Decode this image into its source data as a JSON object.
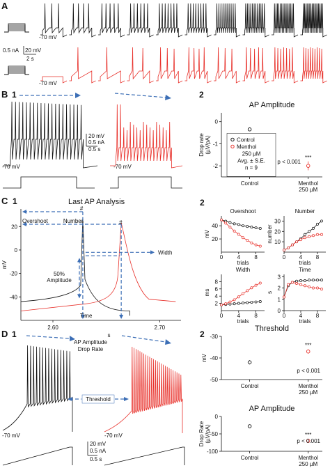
{
  "panels": {
    "A": "A",
    "B": "B",
    "C": "C",
    "D": "D",
    "B1": "1",
    "B2": "2",
    "C1": "1",
    "C2": "2",
    "D1": "1",
    "D2": "2"
  },
  "colors": {
    "control": "#111111",
    "menthol": "#e8302a",
    "arrow": "#3d6fb6"
  },
  "panelA": {
    "vrest_top": "-70 mV",
    "vrest_bottom": "-70 mV",
    "scale_current": "0.5 nA",
    "scale_voltage": "20 mV",
    "scale_time": "2 s",
    "traces_per_row": 10
  },
  "panelB1": {
    "scale_v": "20 mV",
    "scale_i": "0.5 nA",
    "scale_t": "0.5 s",
    "vrest_left": "-70 mV",
    "vrest_right": "-70 mV"
  },
  "panelC1": {
    "title": "Last AP Analysis",
    "labels": {
      "overshoot": "Overshoot",
      "number": "Number",
      "width": "Width",
      "amplitude_line1": "50%",
      "amplitude_line2": "Amplitude",
      "time": "Time",
      "hash1": "#",
      "hash2": "#"
    },
    "xlabel": "s",
    "ylabel": "mV",
    "xticks": [
      "2.60",
      "2.70"
    ],
    "yticks": [
      "20",
      "0",
      "-20",
      "-40"
    ]
  },
  "panelD1": {
    "label_top_line1": "AP Amplitude",
    "label_top_line2": "Drop Rate",
    "threshold": "Threshold",
    "vrest_left": "-70 mV",
    "vrest_right": "-70 mV",
    "scale_v": "20 mV",
    "scale_i": "0.5 nA",
    "scale_t": "0.5 s"
  },
  "chart_data": [
    {
      "id": "B2",
      "type": "scatter",
      "title": "AP Amplitude",
      "ylabel": "Drop rate (µV/pA)",
      "ylabel_line1": "Drop rate",
      "ylabel_line2": "(µV/pA)",
      "ylim": [
        -2.5,
        0.4
      ],
      "yticks": [
        "0",
        "-1",
        "-2"
      ],
      "categories": [
        "Control",
        "Menthol 250 µM"
      ],
      "cat_line1": [
        "Control",
        "Menthol"
      ],
      "cat_line2": [
        "",
        "250 µM"
      ],
      "series": [
        {
          "name": "Control",
          "points": [
            {
              "x": 0,
              "y": -0.35,
              "err": 0.05
            }
          ]
        },
        {
          "name": "Menthol 250 µM",
          "points": [
            {
              "x": 1,
              "y": -2.0,
              "err": 0.2
            }
          ]
        }
      ],
      "legend": {
        "entries": [
          "Control",
          "Menthol"
        ],
        "lines": [
          "250 µM",
          "Avg. ± S.E.",
          "n = 9"
        ]
      },
      "p_value": "p < 0.001",
      "significance": "***"
    },
    {
      "id": "C2-overshoot",
      "type": "line",
      "title": "Overshoot",
      "xlabel": "trials",
      "ylabel": "mV",
      "x": [
        0,
        1,
        2,
        3,
        4,
        5,
        6,
        7,
        8,
        9
      ],
      "xticks": [
        "0",
        "4",
        "8"
      ],
      "yticks": [
        "40",
        "20"
      ],
      "ylim": [
        0,
        55
      ],
      "series": [
        {
          "name": "Control",
          "values": [
            49,
            47,
            45,
            43,
            42,
            40,
            39,
            38,
            37,
            36
          ]
        },
        {
          "name": "Menthol",
          "values": [
            49,
            44,
            38,
            32,
            27,
            22,
            18,
            14,
            11,
            9
          ]
        }
      ]
    },
    {
      "id": "C2-number",
      "type": "line",
      "title": "Number",
      "xlabel": "trials",
      "ylabel": "number",
      "x": [
        0,
        1,
        2,
        3,
        4,
        5,
        6,
        7,
        8,
        9
      ],
      "xticks": [
        "0",
        "4",
        "8"
      ],
      "yticks": [
        "30",
        "20",
        "10"
      ],
      "ylim": [
        0,
        35
      ],
      "series": [
        {
          "name": "Control",
          "values": [
            2,
            4,
            7,
            10,
            13,
            17,
            20,
            23,
            27,
            30
          ]
        },
        {
          "name": "Menthol",
          "values": [
            2,
            4,
            7,
            10,
            12,
            14,
            15,
            16,
            17,
            17
          ]
        }
      ]
    },
    {
      "id": "C2-width",
      "type": "line",
      "title": "Width",
      "xlabel": "trials",
      "ylabel": "ms",
      "x": [
        0,
        1,
        2,
        3,
        4,
        5,
        6,
        7,
        8,
        9
      ],
      "xticks": [
        "0",
        "4",
        "8"
      ],
      "yticks": [
        "8",
        "6",
        "4",
        "2"
      ],
      "ylim": [
        0,
        10
      ],
      "series": [
        {
          "name": "Control",
          "values": [
            1.6,
            1.7,
            1.8,
            1.9,
            2.0,
            2.1,
            2.2,
            2.3,
            2.4,
            2.5
          ]
        },
        {
          "name": "Menthol",
          "values": [
            1.6,
            1.9,
            2.4,
            3.0,
            3.8,
            4.7,
            5.5,
            6.3,
            7.0,
            7.6
          ]
        }
      ]
    },
    {
      "id": "C2-time",
      "type": "line",
      "title": "Time",
      "xlabel": "trials",
      "ylabel": "s",
      "x": [
        0,
        1,
        2,
        3,
        4,
        5,
        6,
        7,
        8,
        9
      ],
      "xticks": [
        "0",
        "4",
        "8"
      ],
      "yticks": [
        "3",
        "2",
        "1",
        "0"
      ],
      "ylim": [
        0,
        3.2
      ],
      "series": [
        {
          "name": "Control",
          "values": [
            1.2,
            2.2,
            2.5,
            2.6,
            2.65,
            2.65,
            2.7,
            2.7,
            2.7,
            2.7
          ]
        },
        {
          "name": "Menthol",
          "values": [
            1.2,
            2.3,
            2.5,
            2.4,
            2.3,
            2.2,
            2.1,
            2.0,
            2.0,
            1.9
          ]
        }
      ]
    },
    {
      "id": "D2-threshold",
      "type": "scatter",
      "title": "Threshold",
      "ylabel": "mV",
      "ylim": [
        -50,
        -30
      ],
      "yticks": [
        "-30",
        "-40",
        "-50"
      ],
      "categories": [
        "Control",
        "Menthol 250 µM"
      ],
      "cat_line1": [
        "Control",
        "Menthol"
      ],
      "cat_line2": [
        "",
        "250 µM"
      ],
      "series": [
        {
          "name": "Control",
          "points": [
            {
              "x": 0,
              "y": -42,
              "err": 1
            }
          ]
        },
        {
          "name": "Menthol 250 µM",
          "points": [
            {
              "x": 1,
              "y": -37,
              "err": 1
            }
          ]
        }
      ],
      "p_value": "p < 0.001",
      "significance": "***"
    },
    {
      "id": "D2-amplitude",
      "type": "scatter",
      "title": "AP Amplitude",
      "ylabel": "Drop Rate (µV/pA)",
      "ylabel_line1": "Drop Rate",
      "ylabel_line2": "(µV/pA)",
      "ylim": [
        -100,
        0
      ],
      "yticks": [
        "0",
        "-50",
        "-100"
      ],
      "categories": [
        "Control",
        "Menthol 250 µM"
      ],
      "cat_line1": [
        "Control",
        "Menthol"
      ],
      "cat_line2": [
        "",
        "250 µM"
      ],
      "series": [
        {
          "name": "Control",
          "points": [
            {
              "x": 0,
              "y": -28,
              "err": 2
            }
          ]
        },
        {
          "name": "Menthol 250 µM",
          "points": [
            {
              "x": 1,
              "y": -70,
              "err": 6
            }
          ]
        }
      ],
      "p_value": "p < 0.001",
      "significance": "***"
    }
  ]
}
